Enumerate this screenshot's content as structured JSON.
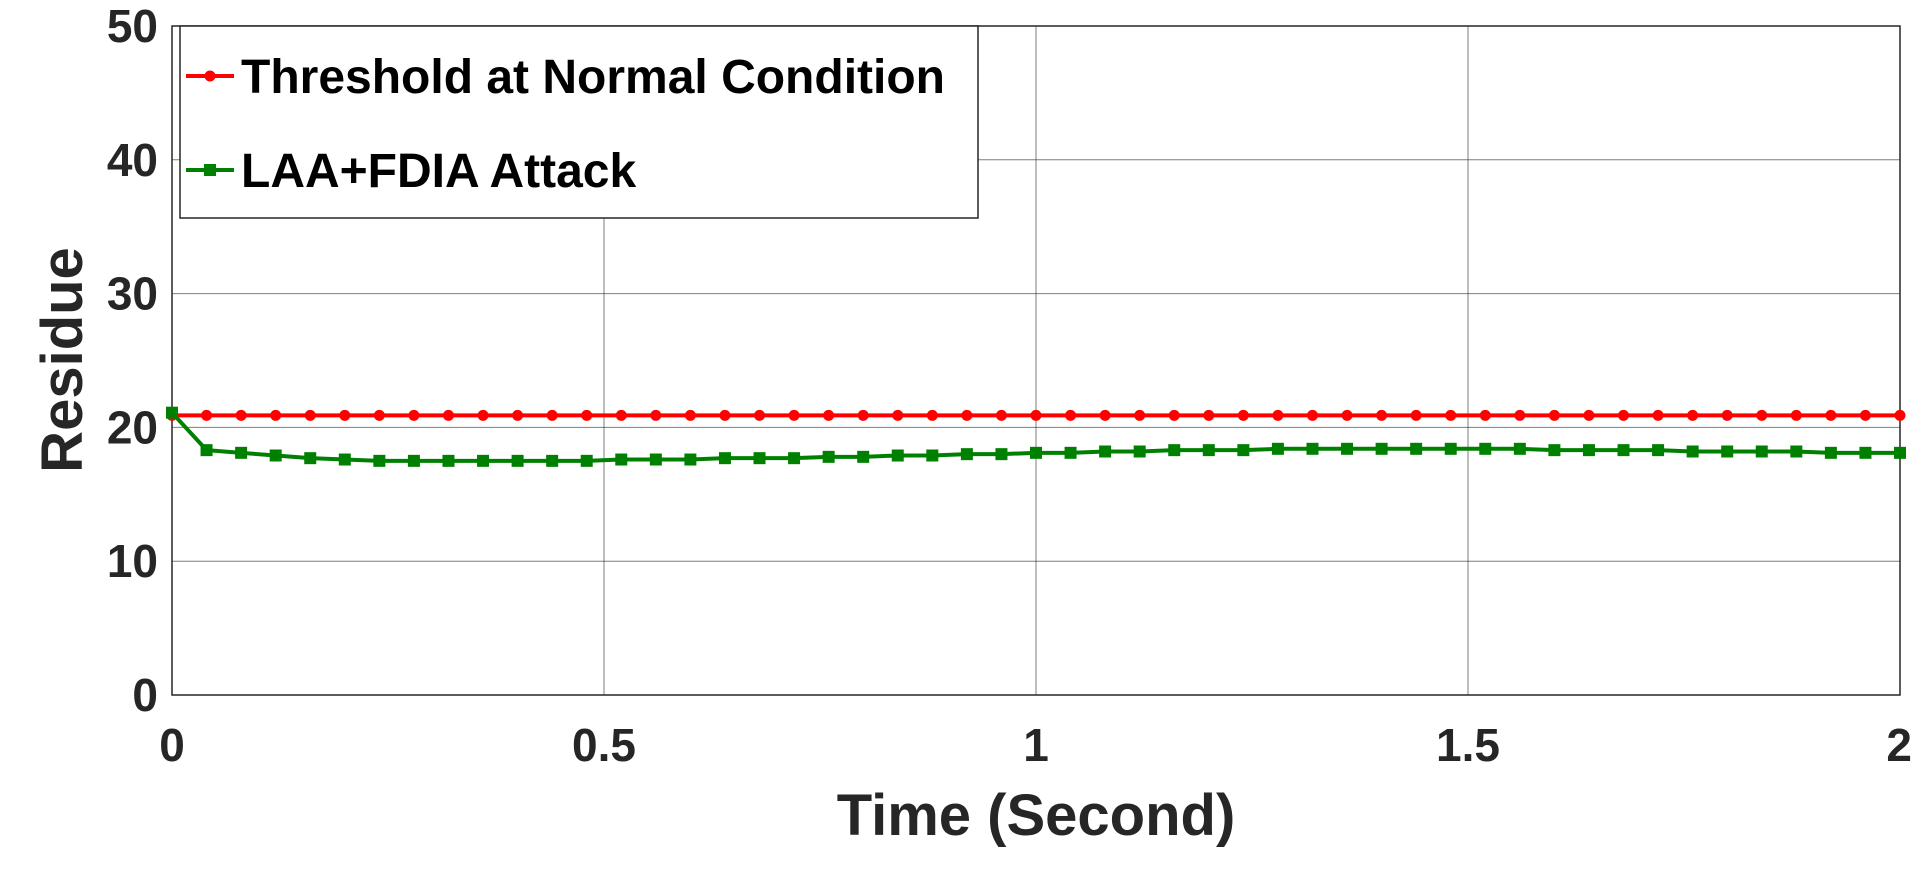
{
  "chart_data": {
    "type": "line",
    "title": "",
    "xlabel": "Time (Second)",
    "ylabel": "Residue",
    "xlim": [
      0,
      2
    ],
    "ylim": [
      0,
      50
    ],
    "xticks": [
      0,
      0.5,
      1,
      1.5,
      2
    ],
    "yticks": [
      0,
      10,
      20,
      30,
      40,
      50
    ],
    "xtick_labels": [
      "0",
      "0.5",
      "1",
      "1.5",
      "2"
    ],
    "ytick_labels": [
      "0",
      "10",
      "20",
      "30",
      "40",
      "50"
    ],
    "grid": true,
    "legend_position": "top-left",
    "x": [
      0,
      0.04,
      0.08,
      0.12,
      0.16,
      0.2,
      0.24,
      0.28,
      0.32,
      0.36,
      0.4,
      0.44,
      0.48,
      0.52,
      0.56,
      0.6,
      0.64,
      0.68,
      0.72,
      0.76,
      0.8,
      0.84,
      0.88,
      0.92,
      0.96,
      1.0,
      1.04,
      1.08,
      1.12,
      1.16,
      1.2,
      1.24,
      1.28,
      1.32,
      1.36,
      1.4,
      1.44,
      1.48,
      1.52,
      1.56,
      1.6,
      1.64,
      1.68,
      1.72,
      1.76,
      1.8,
      1.84,
      1.88,
      1.92,
      1.96,
      2.0
    ],
    "series": [
      {
        "name": "Threshold at Normal Condition",
        "color": "#ff0000",
        "marker": "circle",
        "values": [
          20.9,
          20.9,
          20.9,
          20.9,
          20.9,
          20.9,
          20.9,
          20.9,
          20.9,
          20.9,
          20.9,
          20.9,
          20.9,
          20.9,
          20.9,
          20.9,
          20.9,
          20.9,
          20.9,
          20.9,
          20.9,
          20.9,
          20.9,
          20.9,
          20.9,
          20.9,
          20.9,
          20.9,
          20.9,
          20.9,
          20.9,
          20.9,
          20.9,
          20.9,
          20.9,
          20.9,
          20.9,
          20.9,
          20.9,
          20.9,
          20.9,
          20.9,
          20.9,
          20.9,
          20.9,
          20.9,
          20.9,
          20.9,
          20.9,
          20.9,
          20.9
        ]
      },
      {
        "name": "LAA+FDIA Attack",
        "color": "#008000",
        "marker": "square",
        "values": [
          21.1,
          18.3,
          18.1,
          17.9,
          17.7,
          17.6,
          17.5,
          17.5,
          17.5,
          17.5,
          17.5,
          17.5,
          17.5,
          17.6,
          17.6,
          17.6,
          17.7,
          17.7,
          17.7,
          17.8,
          17.8,
          17.9,
          17.9,
          18.0,
          18.0,
          18.1,
          18.1,
          18.2,
          18.2,
          18.3,
          18.3,
          18.3,
          18.4,
          18.4,
          18.4,
          18.4,
          18.4,
          18.4,
          18.4,
          18.4,
          18.3,
          18.3,
          18.3,
          18.3,
          18.2,
          18.2,
          18.2,
          18.2,
          18.1,
          18.1,
          18.1
        ]
      }
    ]
  }
}
